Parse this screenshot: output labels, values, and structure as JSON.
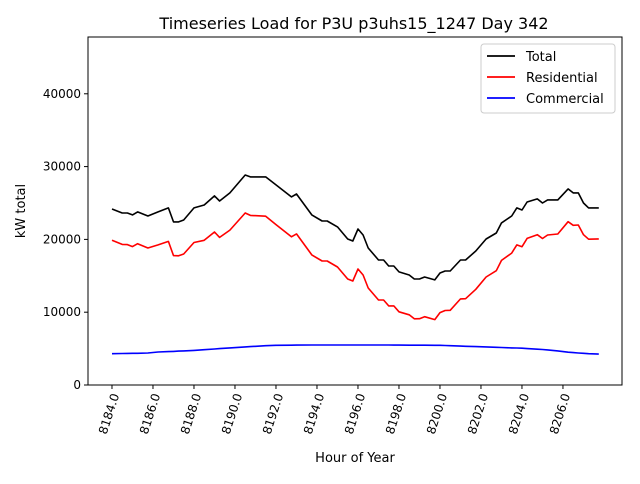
{
  "chart_data": {
    "type": "line",
    "title": "Timeseries Load for P3U p3uhs15_1247  Day 342",
    "xlabel": "Hour of Year",
    "ylabel": "kW total",
    "xlim": [
      8182.83,
      8208.88
    ],
    "ylim": [
      0,
      47800
    ],
    "xticks": [
      8184,
      8186,
      8188,
      8190,
      8192,
      8194,
      8196,
      8198,
      8200,
      8202,
      8204,
      8206
    ],
    "xtick_labels": [
      "8184.0",
      "8186.0",
      "8188.0",
      "8190.0",
      "8192.0",
      "8194.0",
      "8196.0",
      "8198.0",
      "8200.0",
      "8202.0",
      "8204.0",
      "8206.0"
    ],
    "yticks": [
      0,
      10000,
      20000,
      30000,
      40000
    ],
    "ytick_labels": [
      "0",
      "10000",
      "20000",
      "30000",
      "40000"
    ],
    "grid": false,
    "legend_position": "top-right",
    "x": [
      8184.0,
      8184.5,
      8184.75,
      8185.0,
      8185.25,
      8185.75,
      8186.25,
      8186.75,
      8187.0,
      8187.25,
      8187.5,
      8188.0,
      8188.5,
      8189.0,
      8189.25,
      8189.75,
      8190.5,
      8190.75,
      8191.5,
      8192.0,
      8192.75,
      8193.0,
      8193.75,
      8194.25,
      8194.5,
      8195.0,
      8195.5,
      8195.75,
      8196.0,
      8196.25,
      8196.5,
      8197.0,
      8197.25,
      8197.5,
      8197.75,
      8198.0,
      8198.5,
      8198.75,
      8199.0,
      8199.25,
      8199.75,
      8200.0,
      8200.25,
      8200.5,
      8201.0,
      8201.25,
      8201.75,
      8202.25,
      8202.75,
      8203.0,
      8203.5,
      8203.75,
      8204.0,
      8204.25,
      8204.75,
      8205.0,
      8205.25,
      8205.75,
      8206.25,
      8206.5,
      8206.75,
      8207.0,
      8207.25,
      8207.75
    ],
    "series": [
      {
        "name": "Total",
        "color": "#000000",
        "values": [
          24180,
          23630,
          23630,
          23360,
          23770,
          23220,
          23770,
          24320,
          22400,
          22400,
          22670,
          24320,
          24730,
          25970,
          25280,
          26380,
          28850,
          28580,
          28580,
          27480,
          25830,
          26240,
          23360,
          22530,
          22530,
          21710,
          20060,
          19780,
          21430,
          20610,
          18820,
          17170,
          17170,
          16350,
          16350,
          15530,
          15110,
          14560,
          14560,
          14840,
          14430,
          15390,
          15660,
          15660,
          17170,
          17170,
          18410,
          20060,
          20880,
          22260,
          23220,
          24320,
          24040,
          25140,
          25560,
          25000,
          25420,
          25420,
          26930,
          26380,
          26380,
          25000,
          24320,
          24320
        ]
      },
      {
        "name": "Residential",
        "color": "#ff0000",
        "values": [
          19880,
          19310,
          19290,
          19010,
          19410,
          18820,
          19240,
          19730,
          17780,
          17750,
          17990,
          19570,
          19880,
          21020,
          20280,
          21280,
          23620,
          23300,
          23180,
          22030,
          20360,
          20760,
          17870,
          17030,
          17030,
          16210,
          14560,
          14280,
          15930,
          15110,
          13320,
          11680,
          11680,
          10860,
          10870,
          10050,
          9640,
          9090,
          9100,
          9380,
          8980,
          9940,
          10230,
          10260,
          11820,
          11850,
          13140,
          14830,
          15700,
          17110,
          18120,
          19240,
          18990,
          20140,
          20640,
          20120,
          20600,
          20740,
          22430,
          21930,
          21980,
          20650,
          20020,
          20070
        ]
      },
      {
        "name": "Commercial",
        "color": "#0000ff",
        "values": [
          4300,
          4320,
          4340,
          4350,
          4360,
          4400,
          4530,
          4590,
          4620,
          4650,
          4680,
          4750,
          4850,
          4950,
          5000,
          5100,
          5230,
          5280,
          5400,
          5450,
          5470,
          5480,
          5490,
          5500,
          5500,
          5500,
          5500,
          5500,
          5500,
          5500,
          5500,
          5490,
          5490,
          5490,
          5480,
          5480,
          5470,
          5470,
          5460,
          5460,
          5450,
          5450,
          5430,
          5400,
          5350,
          5320,
          5270,
          5230,
          5180,
          5150,
          5100,
          5080,
          5050,
          5000,
          4920,
          4880,
          4820,
          4680,
          4500,
          4450,
          4400,
          4350,
          4300,
          4250
        ]
      }
    ]
  }
}
